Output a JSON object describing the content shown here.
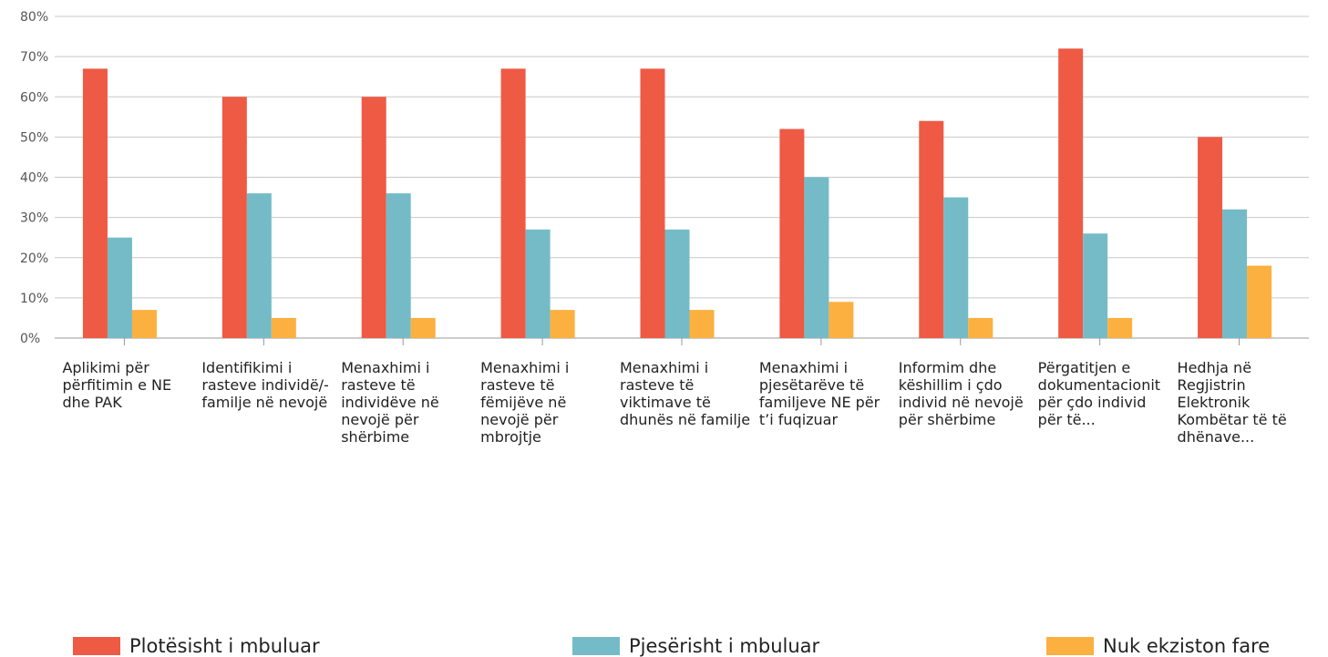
{
  "chart_data": {
    "type": "bar",
    "y_ticks": [
      "0%",
      "10%",
      "20%",
      "30%",
      "40%",
      "50%",
      "60%",
      "70%",
      "80%"
    ],
    "ylim": [
      0,
      80
    ],
    "grid": true,
    "legend_position": "bottom",
    "categories": [
      "Aplikimi për përfitimin e NE dhe PAK",
      "Identifikimi i rasteve individë/-familje në nevojë",
      "Menaxhimi i rasteve të individëve në nevojë për shërbime",
      "Menaxhimi i rasteve të fëmijëve në nevojë për mbrojtje",
      "Menaxhimi i rasteve të viktimave të dhunës në familje",
      "Menaxhimi i pjesëtarëve të familjeve NE për t’i fuqizuar",
      "Informim dhe këshillim i çdo individ në nevojë për shërbime",
      "Përgatitjen e dokumentacionit për çdo individ për të...",
      "Hedhja në Regjistrin Elektronik Kombëtar të të dhënave..."
    ],
    "series": [
      {
        "name": "Plotësisht i mbuluar",
        "color": "#ee5a44",
        "values": [
          67,
          60,
          60,
          67,
          67,
          52,
          54,
          72,
          50
        ]
      },
      {
        "name": "Pjesërisht i mbuluar",
        "color": "#74bbc7",
        "values": [
          25,
          36,
          36,
          27,
          27,
          40,
          35,
          26,
          32
        ]
      },
      {
        "name": "Nuk ekziston fare",
        "color": "#fbb040",
        "values": [
          7,
          5,
          5,
          7,
          7,
          9,
          5,
          5,
          18
        ]
      }
    ]
  }
}
